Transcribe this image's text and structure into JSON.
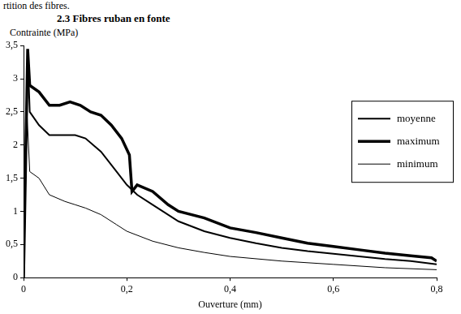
{
  "chart_data": {
    "type": "line",
    "title": "2.3 Fibres ruban en fonte",
    "annotations": [
      "rtition des fibres."
    ],
    "xlabel": "Ouverture (mm)",
    "ylabel": "Contrainte (MPa)",
    "xlim": [
      0,
      0.8
    ],
    "xticks": [
      0,
      {
        "value": 0.2,
        "label": "0,2"
      },
      {
        "value": 0.4,
        "label": "0,4"
      },
      {
        "value": 0.6,
        "label": "0,6"
      },
      {
        "value": 0.8,
        "label": "0,8"
      }
    ],
    "ylim": [
      0,
      3.5
    ],
    "yticks": [
      0,
      {
        "value": 0.5,
        "label": "0,5"
      },
      1,
      {
        "value": 1.5,
        "label": "1,5"
      },
      2,
      {
        "value": 2.5,
        "label": "2,5"
      },
      3,
      {
        "value": 3.5,
        "label": "3,5"
      }
    ],
    "grid": false,
    "legend": "right",
    "series": [
      {
        "name": "moyenne",
        "color": "#000000",
        "x": [
          0,
          0.008,
          0.012,
          0.03,
          0.05,
          0.08,
          0.1,
          0.12,
          0.15,
          0.18,
          0.2,
          0.22,
          0.25,
          0.3,
          0.35,
          0.4,
          0.45,
          0.5,
          0.55,
          0.6,
          0.65,
          0.7,
          0.75,
          0.8
        ],
        "values": [
          0,
          3.4,
          2.5,
          2.3,
          2.15,
          2.15,
          2.15,
          2.1,
          1.9,
          1.6,
          1.4,
          1.25,
          1.1,
          0.85,
          0.7,
          0.6,
          0.52,
          0.45,
          0.4,
          0.36,
          0.32,
          0.28,
          0.25,
          0.2
        ]
      },
      {
        "name": "maximum",
        "color": "#000000",
        "x": [
          0,
          0.008,
          0.012,
          0.03,
          0.05,
          0.07,
          0.09,
          0.11,
          0.13,
          0.15,
          0.17,
          0.19,
          0.205,
          0.21,
          0.22,
          0.25,
          0.28,
          0.3,
          0.35,
          0.4,
          0.45,
          0.5,
          0.55,
          0.6,
          0.65,
          0.7,
          0.75,
          0.79,
          0.8
        ],
        "values": [
          0,
          3.45,
          2.9,
          2.8,
          2.6,
          2.6,
          2.65,
          2.6,
          2.5,
          2.45,
          2.3,
          2.1,
          1.85,
          1.3,
          1.4,
          1.3,
          1.1,
          1.0,
          0.9,
          0.75,
          0.68,
          0.6,
          0.52,
          0.47,
          0.42,
          0.37,
          0.33,
          0.3,
          0.25
        ]
      },
      {
        "name": "minimum",
        "color": "#000000",
        "x": [
          0,
          0.006,
          0.012,
          0.03,
          0.05,
          0.08,
          0.1,
          0.12,
          0.15,
          0.18,
          0.2,
          0.25,
          0.3,
          0.35,
          0.4,
          0.5,
          0.6,
          0.7,
          0.8
        ],
        "values": [
          0,
          2.6,
          1.6,
          1.5,
          1.25,
          1.15,
          1.1,
          1.05,
          0.95,
          0.8,
          0.7,
          0.55,
          0.45,
          0.38,
          0.32,
          0.25,
          0.2,
          0.15,
          0.12
        ]
      }
    ]
  }
}
